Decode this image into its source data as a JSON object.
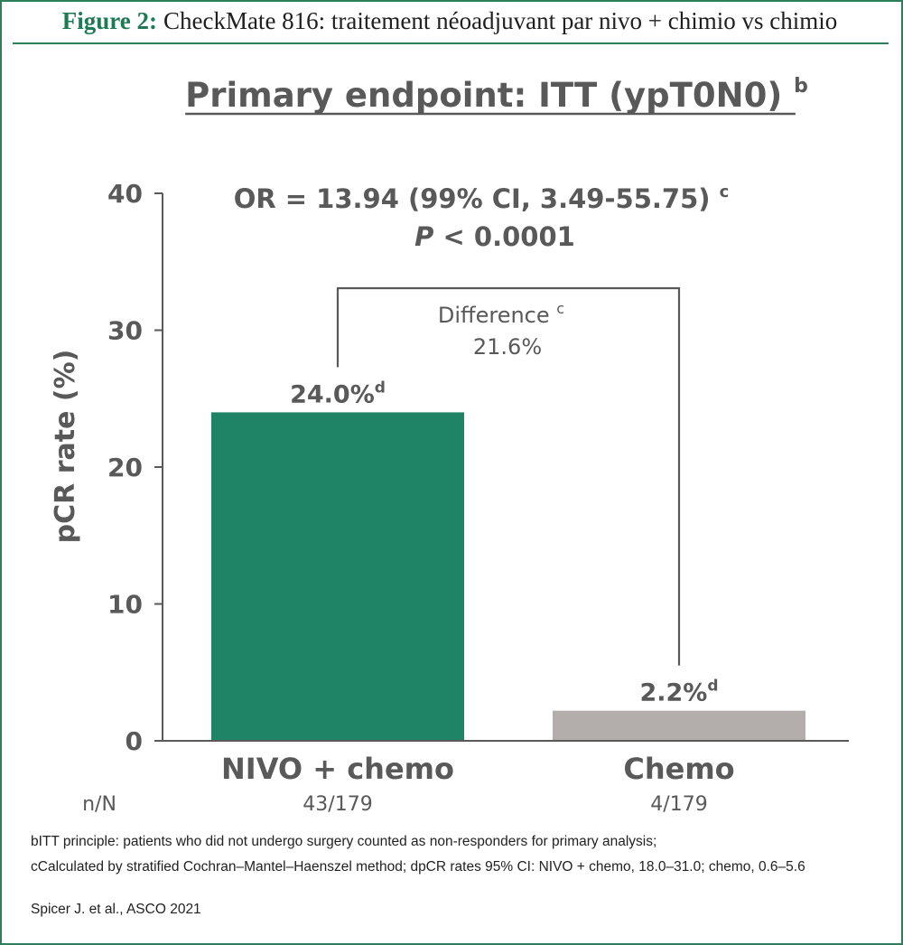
{
  "figure": {
    "label": "Figure 2:",
    "caption": "CheckMate 816: traitement néoadjuvant par nivo + chimio vs chimio"
  },
  "chart_data": {
    "type": "bar",
    "title": "Primary endpoint: ITT (ypT0N0)",
    "title_sup": "b",
    "ylabel": "pCR rate (%)",
    "ylim": [
      0,
      40
    ],
    "yticks": [
      0,
      10,
      20,
      30,
      40
    ],
    "categories": [
      "NIVO + chemo",
      "Chemo"
    ],
    "values": [
      24.0,
      2.2
    ],
    "value_labels": [
      "24.0%",
      "2.2%"
    ],
    "value_label_sup": "d",
    "colors": [
      "#1f8466",
      "#b3adab"
    ],
    "n_label": "n/N",
    "n_values": [
      "43/179",
      "4/179"
    ],
    "stats_line1": "OR = 13.94 (99% CI, 3.49-55.75)",
    "stats_line1_sup": "c",
    "stats_line2_p": "P",
    "stats_line2_rest": " < 0.0001",
    "difference_label": "Difference",
    "difference_sup": "c",
    "difference_value": "21.6%",
    "grid": false,
    "legend": "none"
  },
  "footnotes": [
    "bITT principle: patients who did not undergo surgery counted as non-responders for primary analysis;",
    "cCalculated by stratified Cochran–Mantel–Haenszel method; dpCR rates 95% CI: NIVO + chemo, 18.0–31.0; chemo, 0.6–5.6"
  ],
  "source": "Spicer J. et al., ASCO 2021"
}
